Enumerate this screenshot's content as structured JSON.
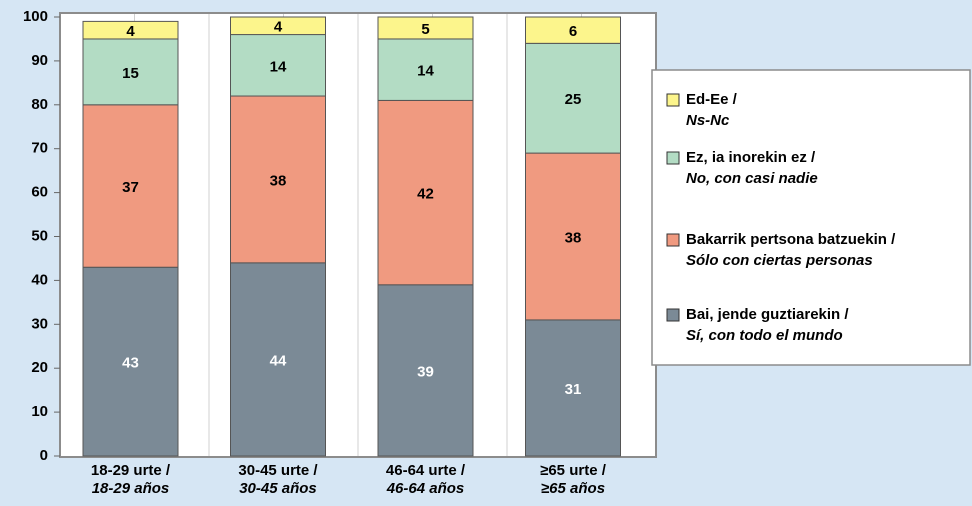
{
  "chart_data": {
    "type": "stacked_bar",
    "categories": [
      [
        "18-29 urte /",
        "18-29 años"
      ],
      [
        "30-45 urte /",
        "30-45 años"
      ],
      [
        "46-64 urte /",
        "46-64 años"
      ],
      [
        "≥65 urte /",
        "≥65 años"
      ]
    ],
    "series": [
      {
        "name": [
          "Bai, jende guztiarekin /",
          "Sí, con todo el mundo"
        ],
        "color": "#7b8a96",
        "label_color": "#ffffff",
        "values": [
          43,
          44,
          39,
          31
        ]
      },
      {
        "name": [
          "Bakarrik pertsona batzuekin /",
          "Sólo con ciertas personas"
        ],
        "color": "#f09a80",
        "label_color": "#000000",
        "values": [
          37,
          38,
          42,
          38
        ]
      },
      {
        "name": [
          "Ez, ia inorekin ez /",
          "No, con casi nadie"
        ],
        "color": "#b3dcc4",
        "label_color": "#000000",
        "values": [
          15,
          14,
          14,
          25
        ]
      },
      {
        "name": [
          "Ed-Ee /",
          "Ns-Nc"
        ],
        "color": "#fcf58c",
        "label_color": "#000000",
        "values": [
          4,
          4,
          5,
          6
        ]
      }
    ],
    "ylim": [
      0,
      100
    ],
    "yticks": [
      0,
      10,
      20,
      30,
      40,
      50,
      60,
      70,
      80,
      90,
      100
    ],
    "legend": "right"
  }
}
